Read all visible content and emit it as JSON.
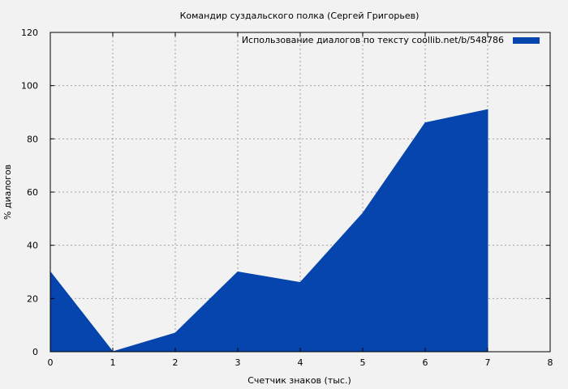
{
  "chart_data": {
    "type": "area",
    "title": "Командир суздальского полка (Сергей Григорьев)",
    "xlabel": "Счетчик знаков (тыс.)",
    "ylabel": "% диалогов",
    "xlim": [
      0,
      8
    ],
    "ylim": [
      0,
      120
    ],
    "xticks": [
      "0",
      "1",
      "2",
      "3",
      "4",
      "5",
      "6",
      "7",
      "8"
    ],
    "yticks": [
      "0",
      "20",
      "40",
      "60",
      "80",
      "100",
      "120"
    ],
    "grid": true,
    "legend_position": "top-right",
    "series": [
      {
        "name": "Использование диалогов по тексту  coollib.net/b/548786",
        "color": "#0645ad",
        "x": [
          0,
          1,
          2,
          3,
          4,
          5,
          6,
          7
        ],
        "y": [
          30,
          0,
          7,
          30,
          26,
          52,
          86,
          91
        ]
      }
    ]
  }
}
